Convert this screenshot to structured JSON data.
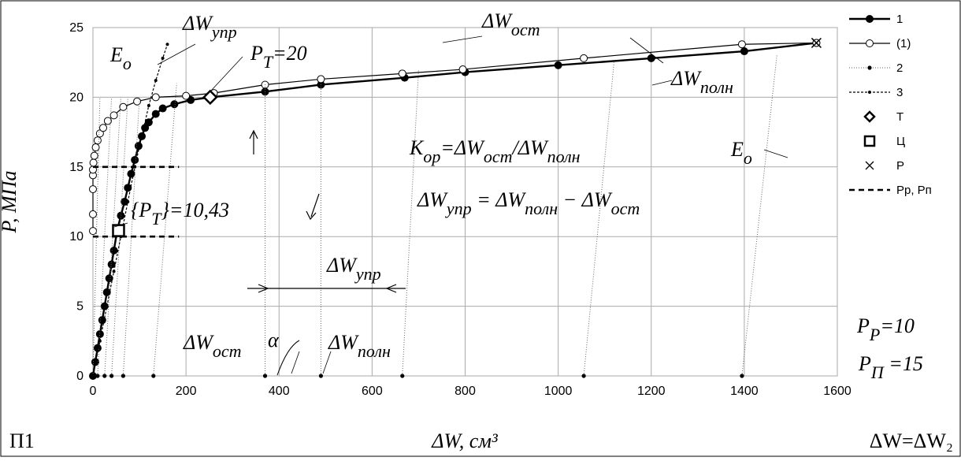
{
  "chart_data": {
    "type": "line",
    "title": "",
    "xlabel": "ΔW, см³",
    "ylabel": "P, МПа",
    "corner_label": "Π1",
    "x_axis_note": "ΔW=ΔW₂",
    "xlim": [
      0,
      1600
    ],
    "ylim": [
      0,
      25
    ],
    "xticks": [
      0,
      200,
      400,
      600,
      800,
      1000,
      1200,
      1400,
      1600
    ],
    "yticks": [
      0,
      5,
      10,
      15,
      20,
      25
    ],
    "grid": true,
    "legend_position": "right",
    "series": [
      {
        "name": "1",
        "style": "solid-filled",
        "x": [
          0,
          5,
          10,
          15,
          20,
          25,
          30,
          35,
          40,
          45,
          52,
          60,
          68,
          75,
          82,
          90,
          98,
          105,
          112,
          120,
          135,
          150,
          175,
          210,
          252,
          370,
          490,
          670,
          800,
          1000,
          1200,
          1400,
          1555
        ],
        "y": [
          0,
          1,
          2,
          3,
          4,
          5,
          6,
          7,
          8,
          9,
          10.43,
          11.5,
          12.5,
          13.5,
          14.5,
          15.5,
          16.5,
          17.2,
          17.8,
          18.2,
          18.8,
          19.2,
          19.5,
          19.8,
          20,
          20.4,
          20.9,
          21.4,
          21.8,
          22.3,
          22.8,
          23.3,
          23.9
        ]
      },
      {
        "name": "(1)",
        "style": "solid-open",
        "x": [
          0,
          0,
          0,
          0,
          0,
          1,
          3,
          6,
          10,
          15,
          22,
          32,
          45,
          65,
          95,
          135,
          200,
          260,
          370,
          490,
          665,
          795,
          1055,
          1395,
          1555
        ],
        "y": [
          10.4,
          11.6,
          13.4,
          14.4,
          14.8,
          15.3,
          15.8,
          16.4,
          16.9,
          17.4,
          17.8,
          18.3,
          18.7,
          19.3,
          19.7,
          20,
          20.1,
          20.3,
          20.9,
          21.3,
          21.7,
          22,
          22.8,
          23.8,
          23.9
        ]
      },
      {
        "name": "2",
        "style": "dotted-small",
        "lines": [
          {
            "x": [
              0,
              15
            ],
            "y": [
              0,
              20
            ]
          },
          {
            "x": [
              10,
              40
            ],
            "y": [
              0,
              20
            ]
          },
          {
            "x": [
              25,
              60
            ],
            "y": [
              0,
              20
            ]
          },
          {
            "x": [
              40,
              75
            ],
            "y": [
              0,
              20
            ]
          },
          {
            "x": [
              65,
              100
            ],
            "y": [
              0,
              20
            ]
          },
          {
            "x": [
              130,
              180
            ],
            "y": [
              0,
              21
            ]
          },
          {
            "x": [
              370,
              370
            ],
            "y": [
              0,
              21
            ]
          },
          {
            "x": [
              490,
              490
            ],
            "y": [
              0,
              21
            ]
          },
          {
            "x": [
              665,
              700
            ],
            "y": [
              0,
              22
            ]
          },
          {
            "x": [
              1055,
              1120
            ],
            "y": [
              0,
              22.5
            ]
          },
          {
            "x": [
              1395,
              1470
            ],
            "y": [
              0,
              23
            ]
          }
        ],
        "points_x": [
          0,
          10,
          25,
          40,
          65,
          130,
          370,
          490,
          665,
          1055,
          1395
        ],
        "points_y": [
          0,
          0,
          0,
          0,
          0,
          0,
          0,
          0,
          0,
          0,
          0
        ]
      },
      {
        "name": "3",
        "style": "dashed-small",
        "x": [
          0,
          15,
          30,
          45,
          60,
          75,
          90,
          105,
          120,
          135,
          150,
          160
        ],
        "y": [
          0,
          2.5,
          5,
          7.5,
          10,
          12.5,
          15,
          17.2,
          19.4,
          21.2,
          22.8,
          23.8
        ]
      },
      {
        "name": "Т",
        "style": "marker-diamond",
        "x": [
          252
        ],
        "y": [
          20
        ]
      },
      {
        "name": "Ц",
        "style": "marker-square",
        "x": [
          55
        ],
        "y": [
          10.43
        ]
      },
      {
        "name": "Р",
        "style": "marker-cross",
        "x": [
          1555
        ],
        "y": [
          23.9
        ]
      },
      {
        "name": "Рр, Рп",
        "style": "dashed-thick",
        "lines": [
          {
            "x": [
              0,
              185
            ],
            "y": [
              10,
              10
            ]
          },
          {
            "x": [
              0,
              185
            ],
            "y": [
              15,
              15
            ]
          }
        ]
      }
    ],
    "annotations": [
      {
        "base": "E",
        "sub": "o"
      },
      {
        "base": "ΔW",
        "sub": "упр"
      },
      {
        "base": "P",
        "sub": "T",
        "tail": "=20"
      },
      {
        "base": "ΔW",
        "sub": "ост"
      },
      {
        "base": "ΔW",
        "sub": "полн"
      },
      {
        "base": "E",
        "sub": "o"
      },
      {
        "text": "K",
        "sub": "op",
        "tail": "=ΔW",
        "sub2": "ост",
        "tail2": "/ΔW",
        "sub3": "полн"
      },
      {
        "text": "ΔW",
        "sub": "упр",
        "tail": " = ΔW",
        "sub2": "полн",
        "tail2": " − ΔW",
        "sub3": "ост"
      },
      {
        "text": "{P",
        "sub": "T",
        "tail": "}=10,43"
      },
      {
        "base": "ΔW",
        "sub": "упр"
      },
      {
        "base": "ΔW",
        "sub": "ост"
      },
      {
        "base": "α"
      },
      {
        "base": "ΔW",
        "sub": "полн"
      },
      {
        "base": "P",
        "sub": "P",
        "tail": "=10"
      },
      {
        "base": "P",
        "sub": "П",
        "tail": " =15"
      }
    ]
  }
}
